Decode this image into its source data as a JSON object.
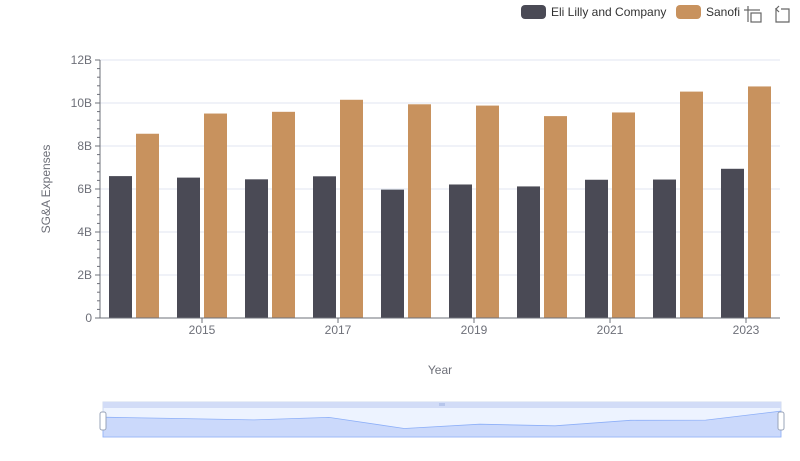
{
  "toolbar": {
    "zoom_icon": "data-zoom-icon",
    "reset_icon": "zoom-reset-icon"
  },
  "chart_data": {
    "type": "bar",
    "xlabel": "Year",
    "ylabel": "SG&A Expenses",
    "ylim": [
      0,
      12000000000
    ],
    "y_ticks": [
      "0",
      "2B",
      "4B",
      "6B",
      "8B",
      "10B",
      "12B"
    ],
    "x_tick_labels": [
      "2015",
      "2017",
      "2019",
      "2021",
      "2023"
    ],
    "categories": [
      "2014",
      "2015",
      "2016",
      "2017",
      "2018",
      "2019",
      "2020",
      "2021",
      "2022",
      "2023"
    ],
    "series": [
      {
        "name": "Eli Lilly and Company",
        "color": "#4a4a55",
        "values": [
          6600000000,
          6530000000,
          6450000000,
          6590000000,
          5970000000,
          6210000000,
          6120000000,
          6430000000,
          6440000000,
          6940000000
        ]
      },
      {
        "name": "Sanofi",
        "color": "#c8925e",
        "values": [
          8570000000,
          9510000000,
          9590000000,
          10150000000,
          9940000000,
          9880000000,
          9390000000,
          9560000000,
          10530000000,
          10770000000
        ]
      }
    ],
    "grid": true,
    "legend_position": "top-right",
    "data_zoom_slider": true
  }
}
